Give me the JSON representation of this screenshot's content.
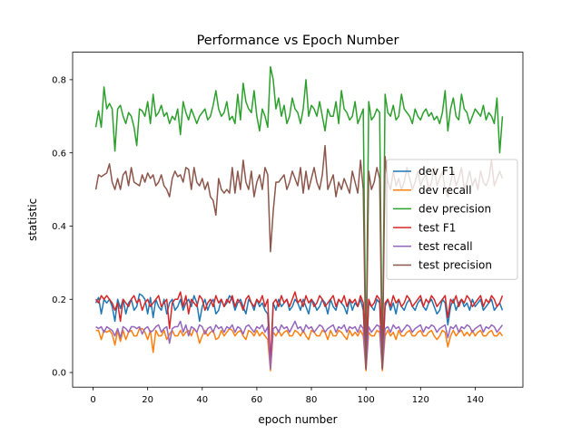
{
  "chart_data": {
    "type": "line",
    "title": "Performance vs Epoch Number",
    "xlabel": "epoch number",
    "ylabel": "statistic",
    "xlim": [
      -7.5,
      157.5
    ],
    "ylim": [
      -0.04,
      0.875
    ],
    "xticks": [
      0,
      20,
      40,
      60,
      80,
      100,
      120,
      140
    ],
    "xtick_labels": [
      "0",
      "20",
      "40",
      "60",
      "80",
      "100",
      "120",
      "140"
    ],
    "yticks": [
      0.0,
      0.2,
      0.4,
      0.6,
      0.8
    ],
    "ytick_labels": [
      "0.0",
      "0.2",
      "0.4",
      "0.6",
      "0.8"
    ],
    "grid": false,
    "legend_position": "center-right",
    "x": [
      1,
      2,
      3,
      4,
      5,
      6,
      7,
      8,
      9,
      10,
      11,
      12,
      13,
      14,
      15,
      16,
      17,
      18,
      19,
      20,
      21,
      22,
      23,
      24,
      25,
      26,
      27,
      28,
      29,
      30,
      31,
      32,
      33,
      34,
      35,
      36,
      37,
      38,
      39,
      40,
      41,
      42,
      43,
      44,
      45,
      46,
      47,
      48,
      49,
      50,
      51,
      52,
      53,
      54,
      55,
      56,
      57,
      58,
      59,
      60,
      61,
      62,
      63,
      64,
      65,
      66,
      67,
      68,
      69,
      70,
      71,
      72,
      73,
      74,
      75,
      76,
      77,
      78,
      79,
      80,
      81,
      82,
      83,
      84,
      85,
      86,
      87,
      88,
      89,
      90,
      91,
      92,
      93,
      94,
      95,
      96,
      97,
      98,
      99,
      100,
      101,
      102,
      103,
      104,
      105,
      106,
      107,
      108,
      109,
      110,
      111,
      112,
      113,
      114,
      115,
      116,
      117,
      118,
      119,
      120,
      121,
      122,
      123,
      124,
      125,
      126,
      127,
      128,
      129,
      130,
      131,
      132,
      133,
      134,
      135,
      136,
      137,
      138,
      139,
      140,
      141,
      142,
      143,
      144,
      145,
      146,
      147,
      148,
      149,
      150
    ],
    "series": [
      {
        "name": "dev F1",
        "color": "#1f77b4",
        "values": [
          0.19,
          0.205,
          0.16,
          0.2,
          0.19,
          0.2,
          0.18,
          0.14,
          0.2,
          0.175,
          0.2,
          0.16,
          0.19,
          0.2,
          0.17,
          0.18,
          0.215,
          0.21,
          0.2,
          0.16,
          0.205,
          0.15,
          0.2,
          0.18,
          0.17,
          0.2,
          0.16,
          0.19,
          0.2,
          0.17,
          0.18,
          0.2,
          0.17,
          0.19,
          0.2,
          0.18,
          0.21,
          0.19,
          0.14,
          0.18,
          0.2,
          0.17,
          0.19,
          0.2,
          0.16,
          0.17,
          0.2,
          0.18,
          0.19,
          0.21,
          0.2,
          0.17,
          0.19,
          0.2,
          0.18,
          0.16,
          0.2,
          0.19,
          0.17,
          0.2,
          0.18,
          0.19,
          0.17,
          0.16,
          0.01,
          0.19,
          0.17,
          0.2,
          0.18,
          0.19,
          0.2,
          0.17,
          0.18,
          0.2,
          0.19,
          0.17,
          0.2,
          0.18,
          0.16,
          0.2,
          0.19,
          0.17,
          0.18,
          0.2,
          0.19,
          0.16,
          0.2,
          0.18,
          0.17,
          0.2,
          0.19,
          0.18,
          0.16,
          0.2,
          0.17,
          0.19,
          0.18,
          0.2,
          0.17,
          0.01,
          0.19,
          0.18,
          0.17,
          0.2,
          0.19,
          0.01,
          0.18,
          0.2,
          0.17,
          0.19,
          0.16,
          0.2,
          0.18,
          0.17,
          0.19,
          0.2,
          0.18,
          0.17,
          0.19,
          0.2,
          0.18,
          0.17,
          0.19,
          0.2,
          0.18,
          0.16,
          0.17,
          0.2,
          0.19,
          0.13,
          0.18,
          0.2,
          0.17,
          0.19,
          0.2,
          0.18,
          0.19,
          0.17,
          0.2,
          0.18,
          0.19,
          0.2,
          0.17,
          0.18,
          0.19,
          0.2,
          0.17,
          0.18,
          0.19,
          0.17
        ]
      },
      {
        "name": "dev recall",
        "color": "#ff7f0e",
        "values": [
          0.115,
          0.115,
          0.09,
          0.115,
          0.11,
          0.115,
          0.105,
          0.075,
          0.115,
          0.085,
          0.115,
          0.09,
          0.11,
          0.115,
          0.1,
          0.1,
          0.12,
          0.12,
          0.11,
          0.09,
          0.115,
          0.055,
          0.115,
          0.1,
          0.1,
          0.115,
          0.09,
          0.105,
          0.115,
          0.1,
          0.1,
          0.115,
          0.1,
          0.11,
          0.115,
          0.1,
          0.12,
          0.11,
          0.08,
          0.1,
          0.115,
          0.1,
          0.11,
          0.115,
          0.09,
          0.095,
          0.115,
          0.1,
          0.11,
          0.12,
          0.115,
          0.1,
          0.11,
          0.115,
          0.1,
          0.09,
          0.115,
          0.11,
          0.1,
          0.115,
          0.1,
          0.11,
          0.1,
          0.09,
          0.005,
          0.11,
          0.1,
          0.115,
          0.1,
          0.11,
          0.115,
          0.1,
          0.1,
          0.115,
          0.11,
          0.1,
          0.115,
          0.1,
          0.09,
          0.115,
          0.11,
          0.1,
          0.1,
          0.115,
          0.11,
          0.09,
          0.115,
          0.1,
          0.1,
          0.115,
          0.11,
          0.1,
          0.09,
          0.115,
          0.1,
          0.11,
          0.1,
          0.115,
          0.1,
          0.005,
          0.11,
          0.1,
          0.1,
          0.115,
          0.11,
          0.005,
          0.1,
          0.115,
          0.1,
          0.11,
          0.09,
          0.115,
          0.1,
          0.1,
          0.11,
          0.115,
          0.1,
          0.1,
          0.11,
          0.115,
          0.1,
          0.1,
          0.11,
          0.115,
          0.1,
          0.09,
          0.1,
          0.115,
          0.11,
          0.07,
          0.1,
          0.115,
          0.1,
          0.11,
          0.115,
          0.1,
          0.11,
          0.1,
          0.115,
          0.1,
          0.11,
          0.115,
          0.1,
          0.1,
          0.11,
          0.115,
          0.1,
          0.1,
          0.11,
          0.1
        ]
      },
      {
        "name": "dev precision",
        "color": "#2ca02c",
        "values": [
          0.67,
          0.715,
          0.67,
          0.78,
          0.72,
          0.735,
          0.72,
          0.605,
          0.72,
          0.73,
          0.7,
          0.68,
          0.71,
          0.7,
          0.67,
          0.62,
          0.72,
          0.715,
          0.7,
          0.74,
          0.68,
          0.76,
          0.7,
          0.71,
          0.73,
          0.7,
          0.71,
          0.68,
          0.7,
          0.69,
          0.72,
          0.65,
          0.74,
          0.71,
          0.69,
          0.72,
          0.7,
          0.68,
          0.7,
          0.71,
          0.72,
          0.69,
          0.7,
          0.73,
          0.77,
          0.72,
          0.7,
          0.71,
          0.74,
          0.69,
          0.7,
          0.68,
          0.76,
          0.69,
          0.79,
          0.74,
          0.72,
          0.71,
          0.77,
          0.7,
          0.66,
          0.72,
          0.7,
          0.67,
          0.835,
          0.8,
          0.72,
          0.75,
          0.7,
          0.73,
          0.68,
          0.7,
          0.75,
          0.72,
          0.71,
          0.68,
          0.72,
          0.8,
          0.7,
          0.73,
          0.72,
          0.7,
          0.74,
          0.7,
          0.66,
          0.72,
          0.7,
          0.7,
          0.74,
          0.68,
          0.77,
          0.72,
          0.71,
          0.69,
          0.7,
          0.74,
          0.68,
          0.7,
          0.72,
          0.01,
          0.74,
          0.69,
          0.7,
          0.72,
          0.71,
          0.01,
          0.76,
          0.71,
          0.7,
          0.73,
          0.69,
          0.7,
          0.76,
          0.72,
          0.71,
          0.7,
          0.68,
          0.72,
          0.7,
          0.69,
          0.71,
          0.72,
          0.7,
          0.71,
          0.69,
          0.7,
          0.68,
          0.71,
          0.77,
          0.66,
          0.72,
          0.75,
          0.7,
          0.69,
          0.76,
          0.72,
          0.71,
          0.68,
          0.7,
          0.72,
          0.71,
          0.7,
          0.73,
          0.69,
          0.71,
          0.7,
          0.68,
          0.75,
          0.6,
          0.7
        ]
      },
      {
        "name": "test F1",
        "color": "#d62728",
        "values": [
          0.2,
          0.19,
          0.21,
          0.2,
          0.21,
          0.2,
          0.19,
          0.17,
          0.19,
          0.14,
          0.2,
          0.19,
          0.18,
          0.2,
          0.21,
          0.19,
          0.2,
          0.17,
          0.19,
          0.2,
          0.18,
          0.19,
          0.2,
          0.21,
          0.18,
          0.19,
          0.2,
          0.12,
          0.19,
          0.2,
          0.2,
          0.22,
          0.18,
          0.21,
          0.16,
          0.2,
          0.19,
          0.18,
          0.21,
          0.2,
          0.17,
          0.19,
          0.2,
          0.18,
          0.21,
          0.19,
          0.2,
          0.18,
          0.2,
          0.19,
          0.21,
          0.18,
          0.2,
          0.19,
          0.17,
          0.2,
          0.21,
          0.19,
          0.18,
          0.2,
          0.19,
          0.21,
          0.18,
          0.2,
          0.02,
          0.19,
          0.2,
          0.18,
          0.21,
          0.19,
          0.2,
          0.18,
          0.2,
          0.22,
          0.19,
          0.2,
          0.18,
          0.21,
          0.19,
          0.2,
          0.18,
          0.19,
          0.21,
          0.2,
          0.18,
          0.19,
          0.2,
          0.21,
          0.18,
          0.2,
          0.19,
          0.21,
          0.18,
          0.2,
          0.19,
          0.2,
          0.18,
          0.21,
          0.19,
          0.02,
          0.2,
          0.18,
          0.19,
          0.21,
          0.2,
          0.02,
          0.19,
          0.2,
          0.18,
          0.21,
          0.19,
          0.2,
          0.18,
          0.19,
          0.21,
          0.2,
          0.18,
          0.19,
          0.2,
          0.21,
          0.18,
          0.2,
          0.19,
          0.21,
          0.2,
          0.18,
          0.19,
          0.2,
          0.21,
          0.15,
          0.2,
          0.19,
          0.21,
          0.18,
          0.2,
          0.19,
          0.21,
          0.2,
          0.18,
          0.19,
          0.2,
          0.21,
          0.18,
          0.2,
          0.19,
          0.21,
          0.2,
          0.18,
          0.19,
          0.21
        ]
      },
      {
        "name": "test recall",
        "color": "#9467bd",
        "values": [
          0.125,
          0.12,
          0.125,
          0.11,
          0.125,
          0.12,
          0.115,
          0.1,
          0.12,
          0.095,
          0.125,
          0.12,
          0.11,
          0.125,
          0.125,
          0.12,
          0.125,
          0.105,
          0.12,
          0.125,
          0.11,
          0.115,
          0.125,
          0.13,
          0.11,
          0.12,
          0.125,
          0.08,
          0.12,
          0.125,
          0.125,
          0.14,
          0.11,
          0.13,
          0.1,
          0.125,
          0.12,
          0.11,
          0.13,
          0.125,
          0.105,
          0.12,
          0.125,
          0.11,
          0.13,
          0.12,
          0.125,
          0.11,
          0.125,
          0.12,
          0.13,
          0.11,
          0.125,
          0.12,
          0.105,
          0.125,
          0.13,
          0.12,
          0.11,
          0.125,
          0.12,
          0.13,
          0.11,
          0.125,
          0.01,
          0.12,
          0.125,
          0.11,
          0.13,
          0.12,
          0.125,
          0.11,
          0.125,
          0.14,
          0.12,
          0.125,
          0.11,
          0.13,
          0.12,
          0.125,
          0.11,
          0.12,
          0.13,
          0.125,
          0.11,
          0.12,
          0.125,
          0.13,
          0.11,
          0.125,
          0.12,
          0.13,
          0.11,
          0.125,
          0.12,
          0.125,
          0.11,
          0.13,
          0.12,
          0.01,
          0.125,
          0.11,
          0.12,
          0.13,
          0.125,
          0.01,
          0.12,
          0.125,
          0.11,
          0.13,
          0.12,
          0.125,
          0.11,
          0.12,
          0.13,
          0.125,
          0.11,
          0.12,
          0.125,
          0.13,
          0.11,
          0.125,
          0.12,
          0.13,
          0.125,
          0.11,
          0.12,
          0.125,
          0.13,
          0.095,
          0.125,
          0.12,
          0.13,
          0.11,
          0.125,
          0.12,
          0.13,
          0.125,
          0.11,
          0.12,
          0.125,
          0.13,
          0.11,
          0.125,
          0.12,
          0.13,
          0.125,
          0.11,
          0.12,
          0.13
        ]
      },
      {
        "name": "test precision",
        "color": "#8c564b",
        "values": [
          0.5,
          0.54,
          0.535,
          0.54,
          0.545,
          0.57,
          0.52,
          0.5,
          0.53,
          0.5,
          0.54,
          0.55,
          0.51,
          0.56,
          0.52,
          0.515,
          0.51,
          0.54,
          0.52,
          0.545,
          0.53,
          0.54,
          0.51,
          0.52,
          0.54,
          0.51,
          0.5,
          0.48,
          0.53,
          0.55,
          0.535,
          0.54,
          0.52,
          0.56,
          0.555,
          0.5,
          0.56,
          0.52,
          0.51,
          0.53,
          0.5,
          0.52,
          0.48,
          0.47,
          0.43,
          0.53,
          0.5,
          0.49,
          0.5,
          0.49,
          0.56,
          0.49,
          0.55,
          0.5,
          0.58,
          0.52,
          0.5,
          0.55,
          0.48,
          0.52,
          0.54,
          0.5,
          0.56,
          0.54,
          0.33,
          0.44,
          0.52,
          0.52,
          0.53,
          0.54,
          0.5,
          0.52,
          0.55,
          0.53,
          0.51,
          0.56,
          0.49,
          0.55,
          0.5,
          0.53,
          0.56,
          0.52,
          0.5,
          0.54,
          0.62,
          0.5,
          0.52,
          0.54,
          0.48,
          0.52,
          0.5,
          0.53,
          0.51,
          0.49,
          0.55,
          0.52,
          0.49,
          0.58,
          0.5,
          0.01,
          0.55,
          0.5,
          0.52,
          0.56,
          0.53,
          0.01,
          0.59,
          0.52,
          0.5,
          0.55,
          0.51,
          0.53,
          0.5,
          0.52,
          0.56,
          0.53,
          0.5,
          0.52,
          0.55,
          0.51,
          0.53,
          0.54,
          0.5,
          0.52,
          0.56,
          0.51,
          0.53,
          0.55,
          0.5,
          0.48,
          0.52,
          0.55,
          0.51,
          0.53,
          0.56,
          0.5,
          0.52,
          0.55,
          0.51,
          0.53,
          0.5,
          0.55,
          0.52,
          0.51,
          0.53,
          0.58,
          0.51,
          0.53,
          0.55,
          0.53
        ]
      }
    ]
  }
}
